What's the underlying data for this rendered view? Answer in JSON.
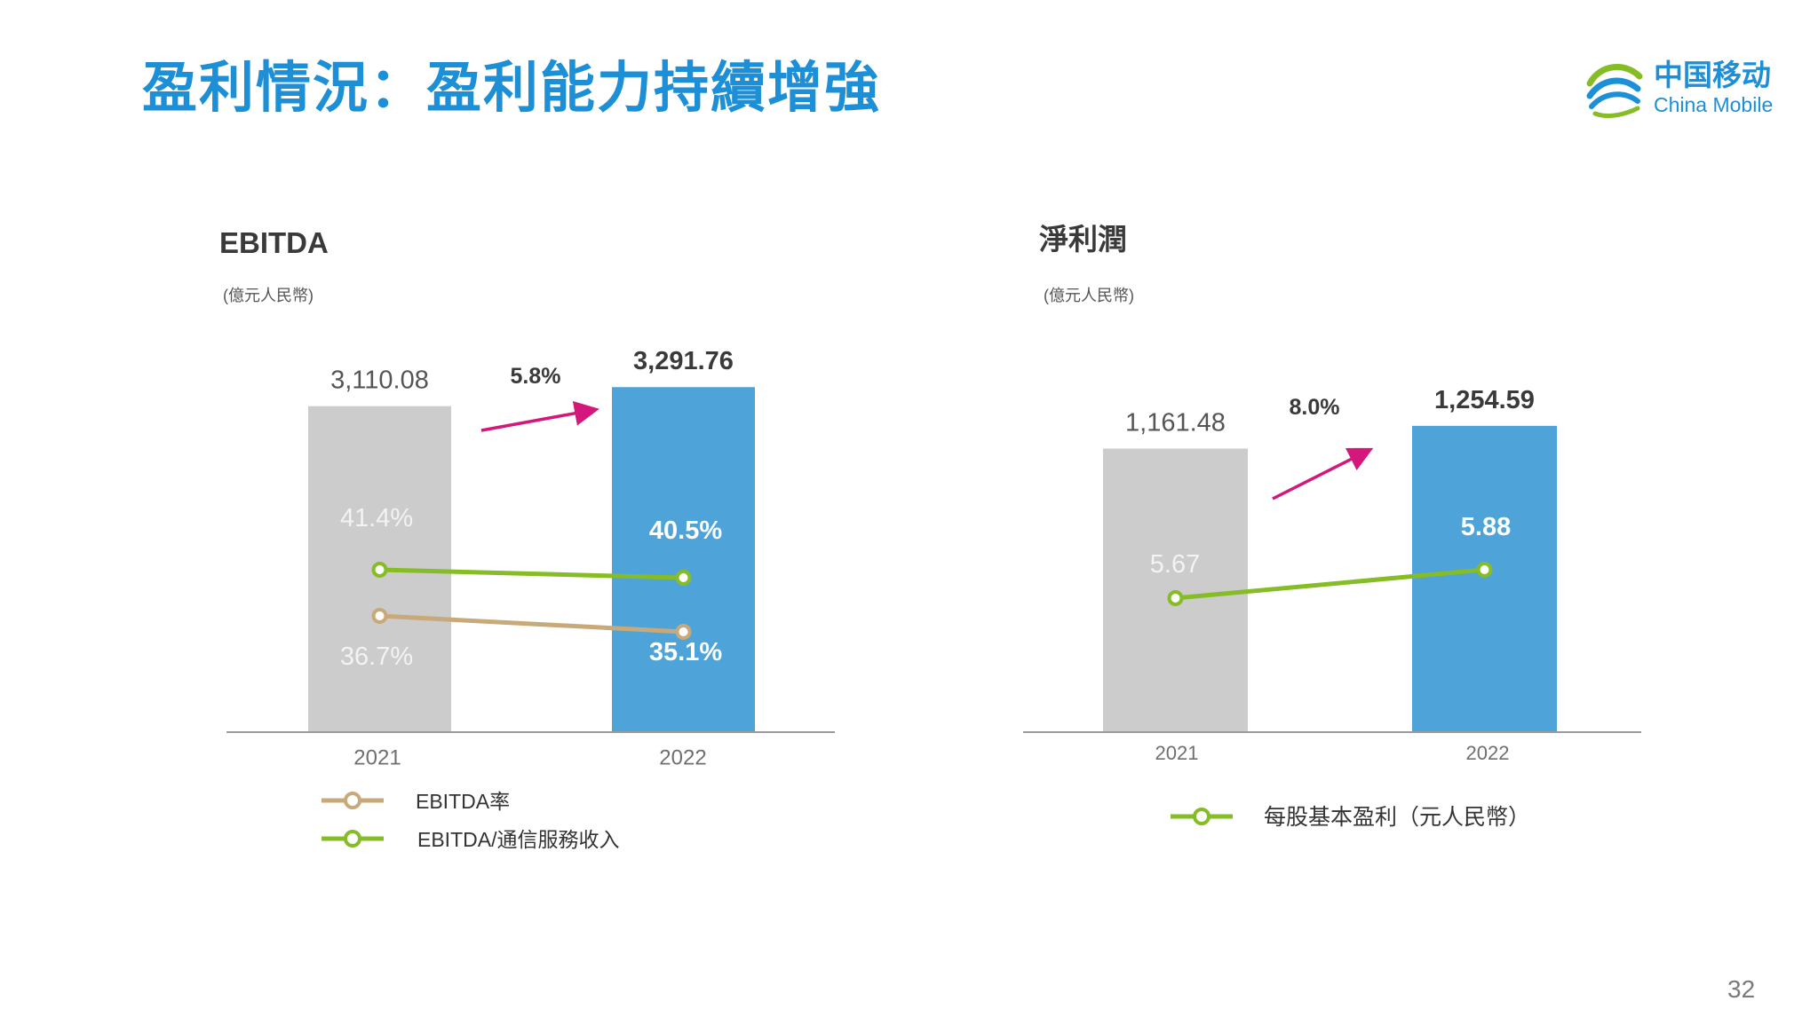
{
  "title": "盈利情況：盈利能力持續增強",
  "logo": {
    "cn": "中国移动",
    "en": "China Mobile"
  },
  "page_number": "32",
  "colors": {
    "title": "#1c8fd6",
    "bar_2021": "#cccccc",
    "bar_2022": "#4ea3d8",
    "ebitda_margin_line": "#c8a97a",
    "ebitda_service_line": "#86bc25",
    "eps_line": "#86bc25",
    "growth_arrow": "#d4177a"
  },
  "chart_data": [
    {
      "type": "bar",
      "title": "EBITDA",
      "unit": "(億元人民幣)",
      "categories": [
        "2021",
        "2022"
      ],
      "values": [
        3110.08,
        3291.76
      ],
      "value_labels": [
        "3,110.08",
        "3,291.76"
      ],
      "growth_label": "5.8%",
      "overlay_lines": [
        {
          "name": "EBITDA率",
          "values": [
            36.7,
            35.1
          ],
          "labels": [
            "36.7%",
            "35.1%"
          ]
        },
        {
          "name": "EBITDA/通信服務收入",
          "values": [
            41.4,
            40.5
          ],
          "labels": [
            "41.4%",
            "40.5%"
          ]
        }
      ]
    },
    {
      "type": "bar",
      "title": "淨利潤",
      "unit": "(億元人民幣)",
      "categories": [
        "2021",
        "2022"
      ],
      "values": [
        1161.48,
        1254.59
      ],
      "value_labels": [
        "1,161.48",
        "1,254.59"
      ],
      "growth_label": "8.0%",
      "overlay_lines": [
        {
          "name": "每股基本盈利（元人民幣）",
          "values": [
            5.67,
            5.88
          ],
          "labels": [
            "5.67",
            "5.88"
          ]
        }
      ]
    }
  ]
}
